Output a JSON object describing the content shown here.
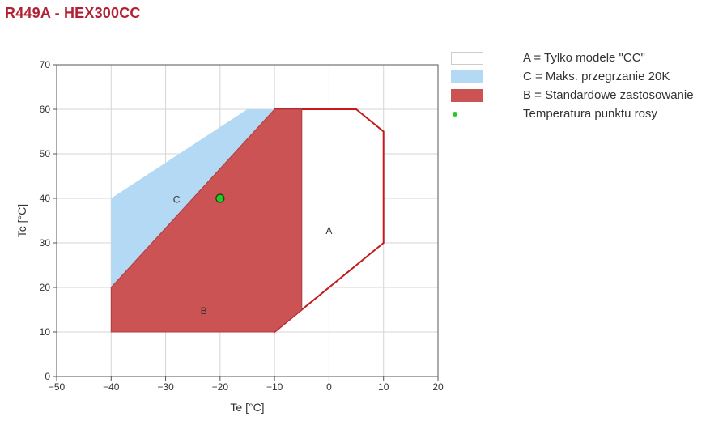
{
  "title": "R449A - HEX300CC",
  "colors": {
    "title": "#b22234",
    "regionA_fill": "#ffffff",
    "regionA_stroke": "#c41a1a",
    "regionC_fill": "#b3d9f5",
    "regionB_fill": "#cc5353",
    "regionB_stroke": "#b23a3a",
    "dew_point": "#22cc22"
  },
  "legend": [
    {
      "label": "A = Tylko modele \"CC\"",
      "swatch": "#ffffff",
      "border": "#cccccc",
      "kind": "box"
    },
    {
      "label": "C = Maks. przegrzanie 20K",
      "swatch": "#b3d9f5",
      "border": "#b3d9f5",
      "kind": "box"
    },
    {
      "label": "B = Standardowe zastosowanie",
      "swatch": "#cc5353",
      "border": "#cc5353",
      "kind": "box"
    },
    {
      "label": "Temperatura punktu rosy",
      "swatch": "#22cc22",
      "border": "#22cc22",
      "kind": "dot"
    }
  ],
  "chart_data": {
    "type": "area",
    "xlabel": "Te [°C]",
    "ylabel": "Tc [°C]",
    "xlim": [
      -50,
      20
    ],
    "ylim": [
      0,
      70
    ],
    "xticks": [
      -50,
      -40,
      -30,
      -20,
      -10,
      0,
      10,
      20
    ],
    "yticks": [
      0,
      10,
      20,
      30,
      40,
      50,
      60,
      70
    ],
    "xtick_labels": [
      "−50",
      "−40",
      "−30",
      "−20",
      "−10",
      "0",
      "10",
      "20"
    ],
    "ytick_labels": [
      "0",
      "10",
      "20",
      "30",
      "40",
      "50",
      "60",
      "70"
    ],
    "grid": true,
    "legend_position": "right",
    "regions": [
      {
        "name": "A",
        "label": "A",
        "label_at": [
          0,
          32
        ],
        "points": [
          [
            -10,
            60
          ],
          [
            5,
            60
          ],
          [
            10,
            55
          ],
          [
            10,
            30
          ],
          [
            -10,
            10
          ]
        ]
      },
      {
        "name": "C",
        "label": "C",
        "label_at": [
          -28,
          39
        ],
        "points": [
          [
            -40,
            40
          ],
          [
            -15,
            60
          ],
          [
            -10,
            60
          ],
          [
            -40,
            20
          ]
        ]
      },
      {
        "name": "B",
        "label": "B",
        "label_at": [
          -23,
          14
        ],
        "points": [
          [
            -40,
            10
          ],
          [
            -10,
            10
          ],
          [
            -5,
            15
          ],
          [
            -5,
            60
          ],
          [
            -10,
            60
          ],
          [
            -40,
            20
          ]
        ]
      }
    ],
    "dew_point": {
      "x": -20,
      "y": 40
    }
  }
}
